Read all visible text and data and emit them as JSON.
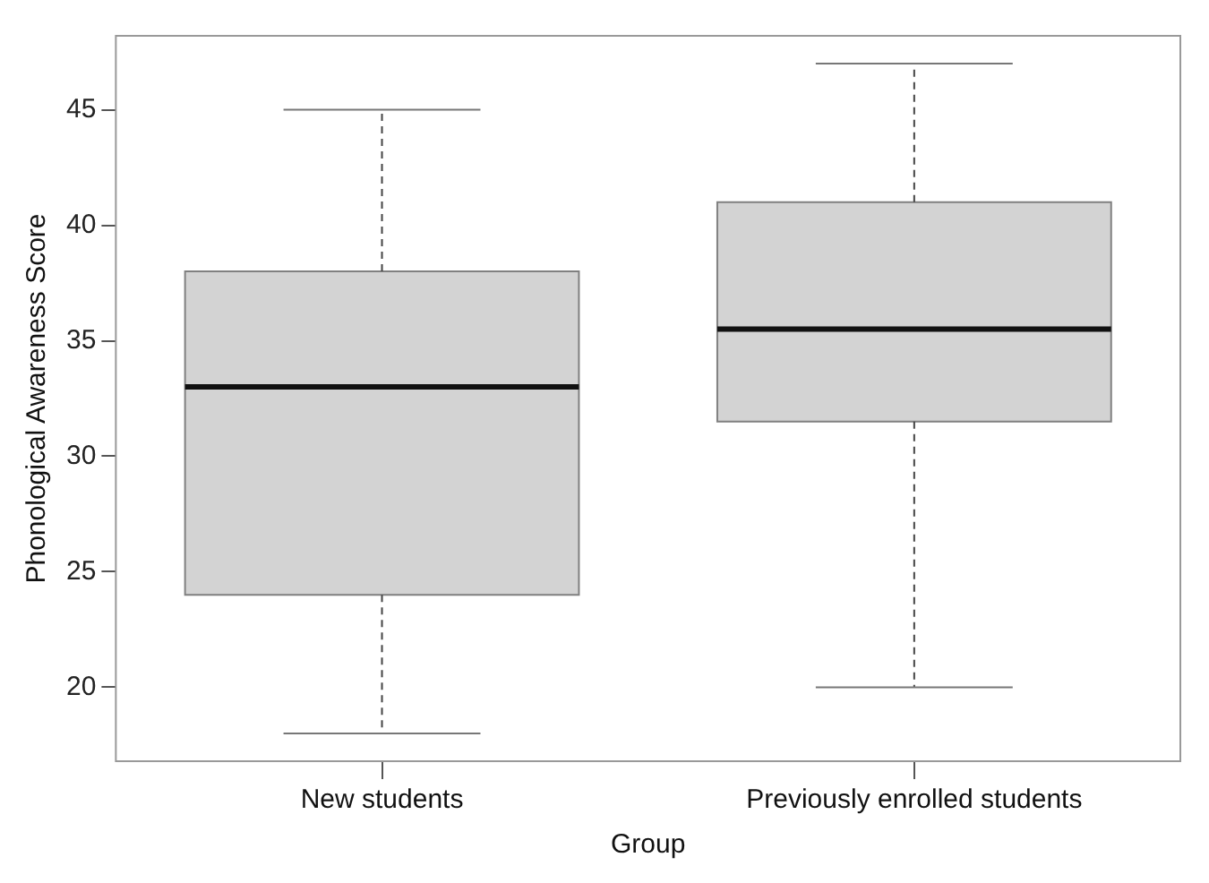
{
  "chart_data": {
    "type": "box",
    "categories": [
      "New students",
      "Previously enrolled students"
    ],
    "boxes": [
      {
        "low": 18,
        "q1": 24,
        "median": 33,
        "q3": 38,
        "high": 45
      },
      {
        "low": 20,
        "q1": 31.5,
        "median": 35.5,
        "q3": 41,
        "high": 47
      }
    ],
    "color": "#d3d3d3",
    "xlabel": "Group",
    "ylabel": "Phonological Awareness Score",
    "ylim": [
      16.8,
      48.2
    ],
    "yticks": [
      20,
      25,
      30,
      35,
      40,
      45
    ],
    "grid": false,
    "legend": false
  }
}
